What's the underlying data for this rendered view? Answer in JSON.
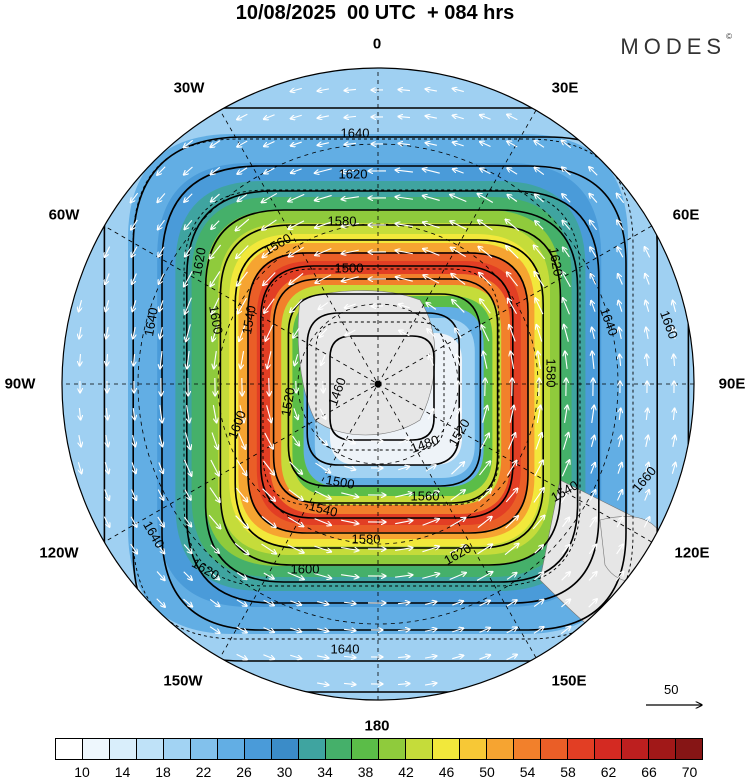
{
  "title": "10/08/2025  00 UTC  + 084 hrs",
  "brand": "MODES",
  "brand_mark": "©",
  "longitude_labels": [
    "0",
    "30E",
    "60E",
    "90E",
    "120E",
    "150E",
    "180",
    "150W",
    "120W",
    "90W",
    "60W",
    "30W"
  ],
  "contour_labels": [
    "1460",
    "1480",
    "1500",
    "1520",
    "1540",
    "1560",
    "1580",
    "1600",
    "1620",
    "1640",
    "1660"
  ],
  "reference_vector": "50",
  "colorbar": {
    "tick_labels": [
      "10",
      "14",
      "18",
      "22",
      "26",
      "30",
      "34",
      "38",
      "42",
      "46",
      "50",
      "54",
      "58",
      "62",
      "66",
      "70"
    ],
    "colors": [
      "#ffffff",
      "#eef7fd",
      "#d9eefb",
      "#bfe2f8",
      "#a2d3f3",
      "#82c1ec",
      "#62aee4",
      "#4a9bd9",
      "#3b8cc8",
      "#3fa4a0",
      "#45b06a",
      "#5bbd48",
      "#8fcb3c",
      "#c5dc3a",
      "#f2e83b",
      "#f7c836",
      "#f6a431",
      "#f2802b",
      "#ea5e27",
      "#e23e24",
      "#d42a22",
      "#bd1f1f",
      "#a11818",
      "#861515"
    ]
  },
  "colors": {
    "pole_fill": "#eef3f8",
    "land_fill": "#e6e6e6"
  }
}
